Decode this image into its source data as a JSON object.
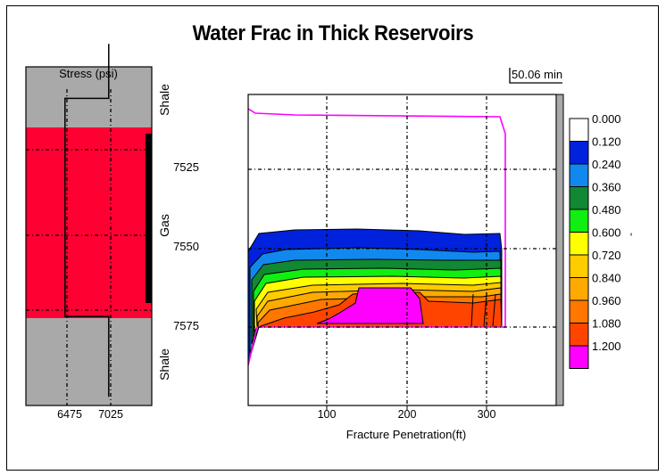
{
  "chart_data": [
    {
      "type": "stress-profile",
      "title": "Stress (psi)",
      "x_ticks": [
        "6475",
        "7025"
      ],
      "depth_labels": [
        "7525",
        "7550",
        "7575"
      ],
      "zone_labels": [
        "Shale",
        "Gas",
        "Shale"
      ],
      "stress_line": {
        "depth": [
          7492,
          7509,
          7509,
          7577,
          7577,
          7602
        ],
        "stress": [
          7000,
          7000,
          6450,
          6450,
          7000,
          7000
        ]
      },
      "colors": {
        "shale": "#a9a9a9",
        "gas": "#ff0033"
      }
    },
    {
      "type": "heatmap",
      "title": "Water Frac in Thick Reservoirs",
      "time_label": "50.06 min",
      "xlabel": "Fracture Penetration(ft)",
      "x_ticks": [
        "100",
        "200",
        "300"
      ],
      "xlim": [
        0,
        400
      ],
      "legend_values": [
        "0.000",
        "0.120",
        "0.240",
        "0.360",
        "0.480",
        "0.600",
        "0.720",
        "0.840",
        "0.960",
        "1.080",
        "1.200"
      ],
      "legend_colors": [
        "#ffffff",
        "#0022dd",
        "#1188ee",
        "#118833",
        "#11ee11",
        "#ffff00",
        "#ffcc00",
        "#ffaa00",
        "#ff7700",
        "#ff4400",
        "#ff00ff"
      ],
      "legend_side_label": "-"
    }
  ]
}
